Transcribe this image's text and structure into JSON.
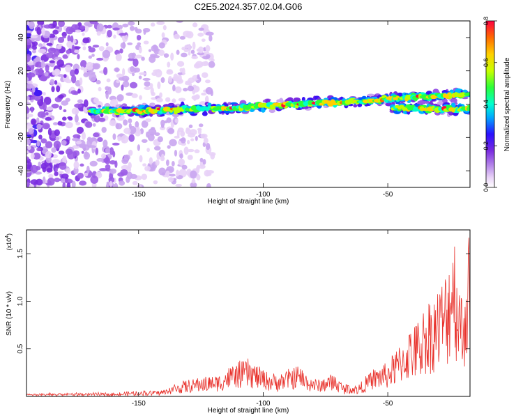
{
  "title": "C2E5.2024.357.02.04.G06",
  "chart_data": [
    {
      "type": "heatmap",
      "xlabel": "Height of straight line (km)",
      "ylabel": "Frequency (Hz)",
      "xlim": [
        -195,
        -17
      ],
      "ylim": [
        -50,
        50
      ],
      "xticks": [
        -150,
        -100,
        -50
      ],
      "yticks": [
        -40,
        -20,
        0,
        20,
        40
      ],
      "grid": false,
      "colorbar": {
        "label": "Normalized spectral amplitude",
        "range": [
          0,
          0.8
        ],
        "ticks": [
          "0.0",
          "0.2",
          "0.4",
          "0.6",
          "0.8"
        ]
      },
      "ridge": {
        "description_points_km": [
          -170,
          -150,
          -130,
          -110,
          -90,
          -70,
          -50,
          -30,
          -17
        ],
        "frequency_hz": [
          -4,
          -4,
          -3,
          -2,
          0,
          1,
          3,
          5,
          6
        ],
        "secondary_branch_hz": [
          null,
          null,
          null,
          null,
          null,
          null,
          -2,
          -3,
          -3
        ]
      }
    },
    {
      "type": "line",
      "xlabel": "Height of straight line (km)",
      "ylabel": "SNR (10 * v/v)",
      "y_multiplier": "(x10",
      "y_multiplier_exp": "4",
      "y_multiplier_close": ")",
      "xlim": [
        -195,
        -17
      ],
      "ylim": [
        0,
        1.75
      ],
      "xticks": [
        -150,
        -100,
        -50
      ],
      "yticks": [
        "0.5",
        "1.0",
        "1.5"
      ],
      "color": "#e8302a",
      "grid": false,
      "series": [
        {
          "x": [
            -195,
            -180,
            -160,
            -140,
            -135,
            -125,
            -118,
            -112,
            -106,
            -100,
            -95,
            -90,
            -86,
            -82,
            -78,
            -72,
            -68,
            -62,
            -56,
            -50,
            -46,
            -42,
            -38,
            -34,
            -30,
            -26,
            -24,
            -22,
            -20,
            -18
          ],
          "y": [
            0.02,
            0.03,
            0.03,
            0.06,
            0.12,
            0.18,
            0.2,
            0.3,
            0.35,
            0.25,
            0.2,
            0.25,
            0.3,
            0.2,
            0.15,
            0.22,
            0.12,
            0.1,
            0.25,
            0.32,
            0.45,
            0.6,
            0.7,
            0.9,
            1.0,
            1.2,
            1.7,
            1.3,
            0.9,
            1.5
          ]
        }
      ]
    }
  ]
}
